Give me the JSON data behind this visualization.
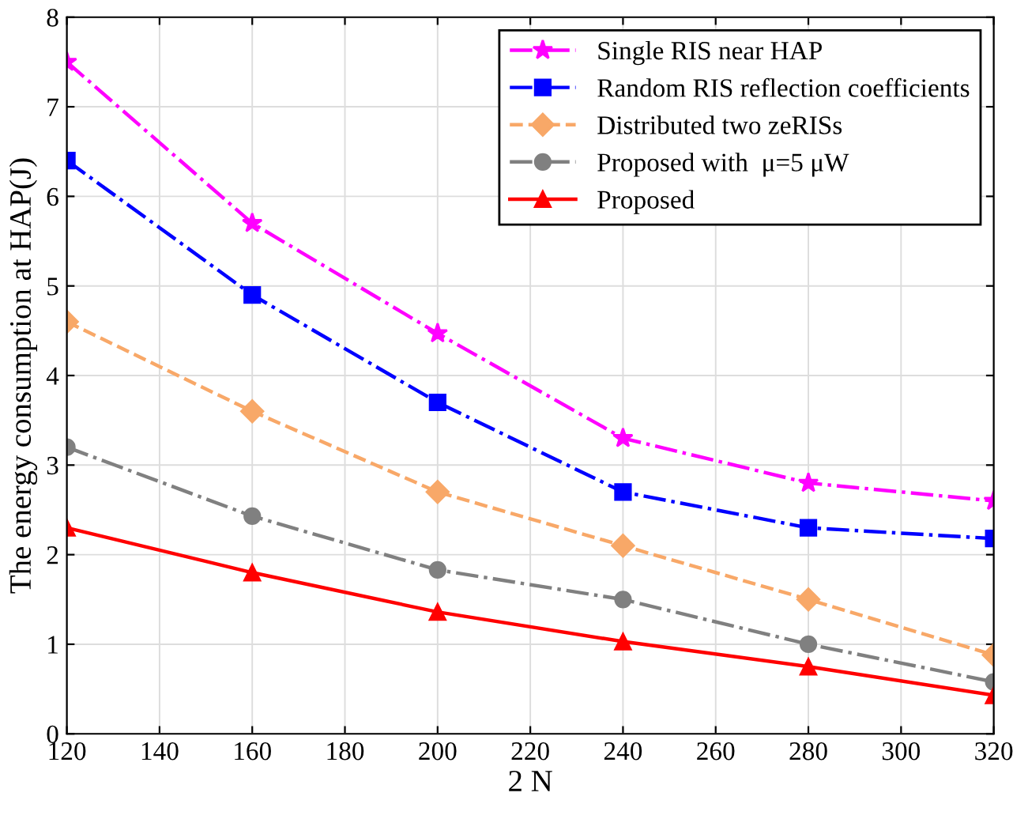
{
  "chart_data": {
    "type": "line",
    "xlabel": "2 N",
    "ylabel": "The energy consumption at HAP(J)",
    "x": [
      120,
      160,
      200,
      240,
      280,
      320
    ],
    "series": [
      {
        "name": "Single RIS near HAP",
        "color": "#ff00ff",
        "marker": "star",
        "line_style": "dashdot",
        "values": [
          7.5,
          5.7,
          4.47,
          3.3,
          2.8,
          2.6
        ]
      },
      {
        "name": "Random RIS reflection coefficients",
        "color": "#0000ff",
        "marker": "square",
        "line_style": "dashdot",
        "values": [
          6.4,
          4.9,
          3.7,
          2.7,
          2.3,
          2.18
        ]
      },
      {
        "name": "Distributed two zeRISs",
        "color": "#f8a868",
        "marker": "diamond",
        "line_style": "dashed",
        "values": [
          4.6,
          3.6,
          2.7,
          2.1,
          1.5,
          0.88
        ]
      },
      {
        "name": "Proposed with  μ=5 μW",
        "color": "#808080",
        "marker": "circle",
        "line_style": "dashdot",
        "values": [
          3.2,
          2.43,
          1.83,
          1.5,
          1.0,
          0.58
        ]
      },
      {
        "name": "Proposed",
        "color": "#ff0000",
        "marker": "triangle",
        "line_style": "solid",
        "values": [
          2.3,
          1.8,
          1.36,
          1.03,
          0.75,
          0.43
        ]
      }
    ],
    "xlim": [
      120,
      320
    ],
    "xticks": [
      120,
      140,
      160,
      180,
      200,
      220,
      240,
      260,
      280,
      300,
      320
    ],
    "ylim": [
      0,
      8
    ],
    "yticks": [
      0,
      1,
      2,
      3,
      4,
      5,
      6,
      7,
      8
    ],
    "grid": true,
    "legend": "top right"
  }
}
